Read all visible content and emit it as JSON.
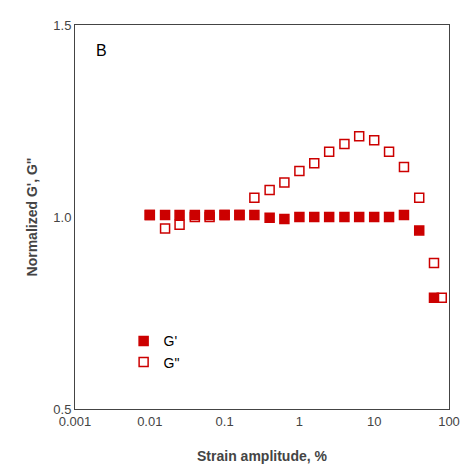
{
  "chart_data": {
    "type": "scatter",
    "xlabel": "Strain amplitude, %",
    "ylabel": "Normalized G', G\"",
    "log": "x",
    "xlim": [
      0.001,
      100
    ],
    "xticks": [
      0.001,
      0.01,
      0.1,
      1,
      10,
      100
    ],
    "ylim": [
      0.5,
      1.5
    ],
    "yticks": [
      0.5,
      {
        "value": 1,
        "label": "1.0"
      },
      1.5
    ],
    "grid": false,
    "legend": "lower left",
    "annotations": [
      "B"
    ],
    "series": [
      {
        "name": "G'",
        "color": "#CC0000",
        "marker": "square",
        "x": [
          0.01,
          0.016,
          0.025,
          0.04,
          0.063,
          0.1,
          0.158,
          0.25,
          0.4,
          0.63,
          1.0,
          1.58,
          2.5,
          4.0,
          6.3,
          10.0,
          15.8,
          25.0,
          40.0,
          63.0
        ],
        "values": [
          1.005,
          1.005,
          1.005,
          1.005,
          1.005,
          1.005,
          1.005,
          1.005,
          0.998,
          0.995,
          1.0,
          1.0,
          1.0,
          1.0,
          1.0,
          1.0,
          1.0,
          1.005,
          0.965,
          0.79
        ]
      },
      {
        "name": "G\"",
        "color": "#CC0000",
        "marker": "square-open",
        "x": [
          0.01,
          0.016,
          0.025,
          0.04,
          0.063,
          0.1,
          0.158,
          0.25,
          0.4,
          0.63,
          1.0,
          1.58,
          2.5,
          4.0,
          6.3,
          10.0,
          15.8,
          25.0,
          40.0,
          63.0,
          80.0
        ],
        "values": [
          1.005,
          0.97,
          0.98,
          1.0,
          1.0,
          1.005,
          1.005,
          1.05,
          1.07,
          1.09,
          1.12,
          1.14,
          1.17,
          1.19,
          1.21,
          1.2,
          1.17,
          1.13,
          1.05,
          0.88,
          0.79
        ]
      }
    ]
  }
}
